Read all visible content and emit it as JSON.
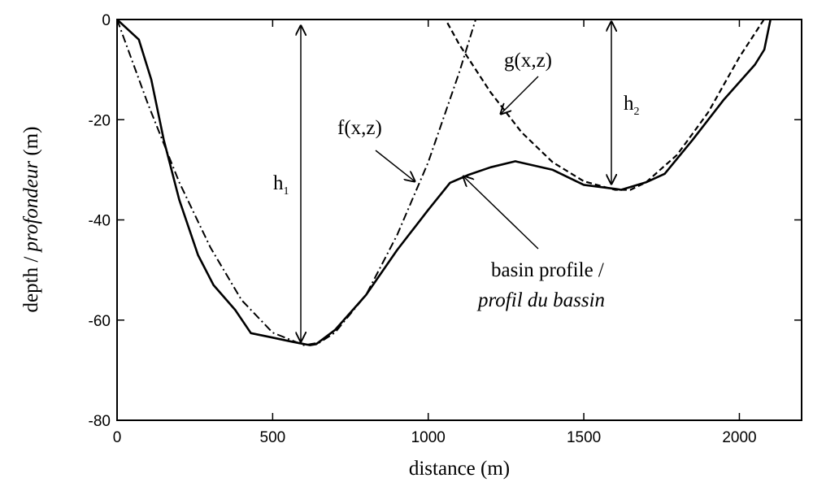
{
  "chart_data": {
    "type": "line",
    "xlabel": "distance (m)",
    "ylabel_parts": [
      "depth / ",
      "profondeur",
      " (m)"
    ],
    "xlim": [
      0,
      2200
    ],
    "ylim": [
      -80,
      0
    ],
    "xticks": [
      0,
      500,
      1000,
      1500,
      2000
    ],
    "yticks": [
      0,
      -20,
      -40,
      -60,
      -80
    ],
    "grid": false,
    "series": [
      {
        "name": "basin profile / profil du bassin",
        "style": "solid",
        "x": [
          0,
          70,
          110,
          150,
          200,
          260,
          310,
          380,
          430,
          500,
          560,
          620,
          640,
          700,
          800,
          900,
          1000,
          1070,
          1130,
          1200,
          1280,
          1400,
          1500,
          1600,
          1620,
          1700,
          1760,
          1850,
          1950,
          2050,
          2080,
          2090,
          2100,
          2110
        ],
        "y": [
          0,
          -4,
          -12,
          -24,
          -36,
          -47,
          -53,
          -58,
          -62.6,
          -63.5,
          -64.3,
          -65,
          -64.8,
          -62,
          -55,
          -46,
          -38,
          -32.6,
          -31,
          -29.5,
          -28.3,
          -30,
          -33,
          -33.8,
          -34,
          -32.5,
          -30.8,
          -24,
          -16,
          -9,
          -6,
          -3,
          0,
          2
        ]
      },
      {
        "name": "f(x,z)",
        "style": "dashdot",
        "x": [
          0,
          100,
          200,
          300,
          400,
          500,
          600,
          650,
          700,
          800,
          900,
          1000,
          1100,
          1150,
          1200
        ],
        "y": [
          0,
          -17,
          -32.5,
          -45.5,
          -56,
          -62.5,
          -65,
          -64.5,
          -62.5,
          -55,
          -43,
          -28.5,
          -10.5,
          -0.5,
          10
        ]
      },
      {
        "name": "g(x,z)",
        "style": "dashed",
        "x": [
          1020,
          1100,
          1200,
          1300,
          1400,
          1500,
          1600,
          1650,
          1700,
          1800,
          1900,
          2000,
          2100,
          2160
        ],
        "y": [
          4,
          -5,
          -14.5,
          -22.5,
          -28.5,
          -32.3,
          -34,
          -34,
          -32.5,
          -27,
          -18.5,
          -7.5,
          2,
          2
        ]
      }
    ],
    "annotations": [
      {
        "id": "f",
        "text": "f(x,z)"
      },
      {
        "id": "g",
        "text": "g(x,z)"
      },
      {
        "id": "h1",
        "text": "h",
        "subscript": "1"
      },
      {
        "id": "h2",
        "text": "h",
        "subscript": "2"
      },
      {
        "id": "basin",
        "lines": [
          "basin profile /",
          "profil du bassin"
        ]
      }
    ]
  }
}
